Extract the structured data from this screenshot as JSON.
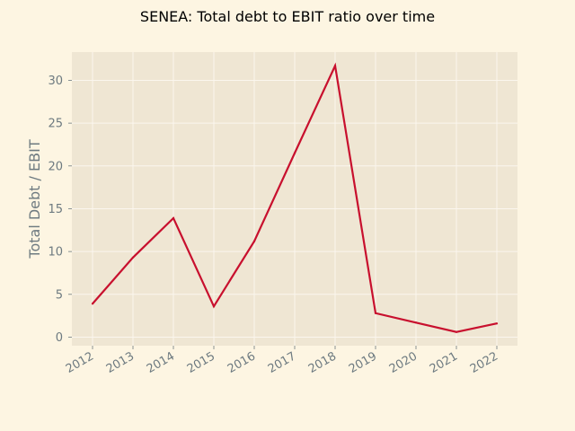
{
  "chart_data": {
    "type": "line",
    "title": "SENEA: Total debt to EBIT ratio over time",
    "xlabel": "",
    "ylabel": "Total Debt / EBIT",
    "x": [
      "2012",
      "2013",
      "2014",
      "2015",
      "2016",
      "2017",
      "2018",
      "2019",
      "2020",
      "2021",
      "2022"
    ],
    "series": [
      {
        "values": [
          3.9,
          9.3,
          13.9,
          3.6,
          11.2,
          21.5,
          31.7,
          2.8,
          1.7,
          0.6,
          1.6
        ]
      }
    ],
    "y_ticks": [
      0,
      5,
      10,
      15,
      20,
      25,
      30
    ],
    "ylim": [
      -1.0,
      33.3
    ],
    "grid": true,
    "colors": {
      "figure_background": "#fdf5e2",
      "plot_background": "#efe6d3",
      "grid": "#fbf6ee",
      "line": "#c8102e",
      "tick_text": "#6d7a80",
      "title_text": "#000000"
    }
  }
}
